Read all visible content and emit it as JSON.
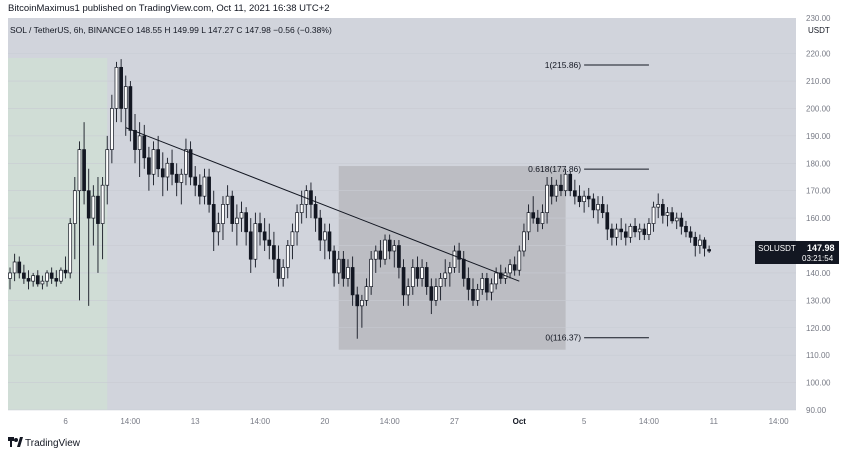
{
  "header": {
    "publish_line": "BitcoinMaximus1 published on TradingView.com, Oct 11, 2021 16:38 UTC+2"
  },
  "symbol_bar": {
    "symbol": "SOL / TetherUS, 6h, BINANCE",
    "ohlc_text": "O 148.55  H 149.99  L 147.27  C 147.98  −0.56 (−0.38%)"
  },
  "price_axis": {
    "currency_label": "USDT",
    "top_partial_label": "230.00"
  },
  "last_price": {
    "ticker": "SOLUSDT",
    "price": "147.98",
    "countdown": "03:21:54",
    "color": "#131722"
  },
  "footer": {
    "brand": "TradingView"
  },
  "colors": {
    "plot_bg": "#d1d4dc",
    "left_shade": "#d0ddd6",
    "range_box": "#b8b9be",
    "candle": "#131722"
  },
  "chart_data": {
    "type": "candlestick",
    "title": "SOL / TetherUS, 6h, BINANCE",
    "ylabel": "USDT",
    "ylim": [
      90,
      233
    ],
    "yticks": [
      90,
      100,
      110,
      120,
      130,
      140,
      150,
      160,
      170,
      180,
      190,
      200,
      210,
      220
    ],
    "xlim": [
      0,
      156
    ],
    "xticks": [
      {
        "x": 12,
        "label": "6"
      },
      {
        "x": 26,
        "label": "14:00"
      },
      {
        "x": 40,
        "label": "13"
      },
      {
        "x": 54,
        "label": "14:00"
      },
      {
        "x": 68,
        "label": "20"
      },
      {
        "x": 82,
        "label": "14:00"
      },
      {
        "x": 96,
        "label": "27"
      },
      {
        "x": 110,
        "label": "Oct"
      },
      {
        "x": 124,
        "label": "5"
      },
      {
        "x": 138,
        "label": "14:00"
      },
      {
        "x": 152,
        "label": "11"
      },
      {
        "x": 166,
        "label": "14:00"
      }
    ],
    "grid": true,
    "candles": [
      {
        "x": 0,
        "o": 138,
        "h": 142,
        "l": 134,
        "c": 140
      },
      {
        "x": 1,
        "o": 140,
        "h": 147,
        "l": 137,
        "c": 144
      },
      {
        "x": 2,
        "o": 144,
        "h": 146,
        "l": 138,
        "c": 140
      },
      {
        "x": 3,
        "o": 140,
        "h": 143,
        "l": 136,
        "c": 138
      },
      {
        "x": 4,
        "o": 138,
        "h": 141,
        "l": 134,
        "c": 137
      },
      {
        "x": 5,
        "o": 137,
        "h": 140,
        "l": 135,
        "c": 139
      },
      {
        "x": 6,
        "o": 139,
        "h": 141,
        "l": 135,
        "c": 136
      },
      {
        "x": 7,
        "o": 136,
        "h": 139,
        "l": 134,
        "c": 137
      },
      {
        "x": 8,
        "o": 137,
        "h": 141,
        "l": 135,
        "c": 140
      },
      {
        "x": 9,
        "o": 140,
        "h": 142,
        "l": 136,
        "c": 138
      },
      {
        "x": 10,
        "o": 138,
        "h": 141,
        "l": 135,
        "c": 137
      },
      {
        "x": 11,
        "o": 137,
        "h": 142,
        "l": 136,
        "c": 141
      },
      {
        "x": 12,
        "o": 141,
        "h": 146,
        "l": 138,
        "c": 140
      },
      {
        "x": 13,
        "o": 140,
        "h": 160,
        "l": 138,
        "c": 158
      },
      {
        "x": 14,
        "o": 158,
        "h": 175,
        "l": 145,
        "c": 170
      },
      {
        "x": 15,
        "o": 170,
        "h": 188,
        "l": 130,
        "c": 185
      },
      {
        "x": 16,
        "o": 185,
        "h": 195,
        "l": 165,
        "c": 170
      },
      {
        "x": 17,
        "o": 170,
        "h": 178,
        "l": 128,
        "c": 160
      },
      {
        "x": 18,
        "o": 160,
        "h": 172,
        "l": 150,
        "c": 168
      },
      {
        "x": 19,
        "o": 168,
        "h": 175,
        "l": 140,
        "c": 158
      },
      {
        "x": 20,
        "o": 158,
        "h": 175,
        "l": 145,
        "c": 172
      },
      {
        "x": 21,
        "o": 172,
        "h": 190,
        "l": 165,
        "c": 185
      },
      {
        "x": 22,
        "o": 185,
        "h": 205,
        "l": 180,
        "c": 200
      },
      {
        "x": 23,
        "o": 200,
        "h": 217,
        "l": 195,
        "c": 215
      },
      {
        "x": 24,
        "o": 215,
        "h": 218,
        "l": 195,
        "c": 200
      },
      {
        "x": 25,
        "o": 200,
        "h": 212,
        "l": 190,
        "c": 208
      },
      {
        "x": 26,
        "o": 208,
        "h": 210,
        "l": 188,
        "c": 192
      },
      {
        "x": 27,
        "o": 192,
        "h": 198,
        "l": 180,
        "c": 185
      },
      {
        "x": 28,
        "o": 185,
        "h": 195,
        "l": 175,
        "c": 190
      },
      {
        "x": 29,
        "o": 190,
        "h": 194,
        "l": 178,
        "c": 182
      },
      {
        "x": 30,
        "o": 182,
        "h": 186,
        "l": 170,
        "c": 176
      },
      {
        "x": 31,
        "o": 176,
        "h": 188,
        "l": 172,
        "c": 185
      },
      {
        "x": 32,
        "o": 185,
        "h": 190,
        "l": 175,
        "c": 178
      },
      {
        "x": 33,
        "o": 178,
        "h": 184,
        "l": 168,
        "c": 175
      },
      {
        "x": 34,
        "o": 175,
        "h": 182,
        "l": 170,
        "c": 180
      },
      {
        "x": 35,
        "o": 180,
        "h": 185,
        "l": 172,
        "c": 176
      },
      {
        "x": 36,
        "o": 176,
        "h": 180,
        "l": 168,
        "c": 173
      },
      {
        "x": 37,
        "o": 173,
        "h": 178,
        "l": 165,
        "c": 176
      },
      {
        "x": 38,
        "o": 176,
        "h": 189,
        "l": 172,
        "c": 185
      },
      {
        "x": 39,
        "o": 185,
        "h": 188,
        "l": 172,
        "c": 175
      },
      {
        "x": 40,
        "o": 175,
        "h": 179,
        "l": 168,
        "c": 172
      },
      {
        "x": 41,
        "o": 172,
        "h": 176,
        "l": 165,
        "c": 168
      },
      {
        "x": 42,
        "o": 168,
        "h": 178,
        "l": 165,
        "c": 175
      },
      {
        "x": 43,
        "o": 175,
        "h": 178,
        "l": 162,
        "c": 165
      },
      {
        "x": 44,
        "o": 165,
        "h": 170,
        "l": 148,
        "c": 155
      },
      {
        "x": 45,
        "o": 155,
        "h": 162,
        "l": 150,
        "c": 158
      },
      {
        "x": 46,
        "o": 158,
        "h": 168,
        "l": 152,
        "c": 165
      },
      {
        "x": 47,
        "o": 165,
        "h": 172,
        "l": 160,
        "c": 168
      },
      {
        "x": 48,
        "o": 168,
        "h": 170,
        "l": 155,
        "c": 158
      },
      {
        "x": 49,
        "o": 158,
        "h": 165,
        "l": 150,
        "c": 160
      },
      {
        "x": 50,
        "o": 160,
        "h": 166,
        "l": 155,
        "c": 162
      },
      {
        "x": 51,
        "o": 162,
        "h": 164,
        "l": 150,
        "c": 155
      },
      {
        "x": 52,
        "o": 155,
        "h": 160,
        "l": 140,
        "c": 145
      },
      {
        "x": 53,
        "o": 145,
        "h": 162,
        "l": 142,
        "c": 158
      },
      {
        "x": 54,
        "o": 158,
        "h": 162,
        "l": 150,
        "c": 155
      },
      {
        "x": 55,
        "o": 155,
        "h": 160,
        "l": 148,
        "c": 152
      },
      {
        "x": 56,
        "o": 152,
        "h": 158,
        "l": 145,
        "c": 150
      },
      {
        "x": 57,
        "o": 150,
        "h": 155,
        "l": 140,
        "c": 145
      },
      {
        "x": 58,
        "o": 145,
        "h": 150,
        "l": 135,
        "c": 138
      },
      {
        "x": 59,
        "o": 138,
        "h": 145,
        "l": 135,
        "c": 142
      },
      {
        "x": 60,
        "o": 142,
        "h": 152,
        "l": 138,
        "c": 150
      },
      {
        "x": 61,
        "o": 150,
        "h": 158,
        "l": 145,
        "c": 155
      },
      {
        "x": 62,
        "o": 155,
        "h": 165,
        "l": 150,
        "c": 162
      },
      {
        "x": 63,
        "o": 162,
        "h": 170,
        "l": 158,
        "c": 165
      },
      {
        "x": 64,
        "o": 165,
        "h": 172,
        "l": 160,
        "c": 170
      },
      {
        "x": 65,
        "o": 170,
        "h": 173,
        "l": 160,
        "c": 165
      },
      {
        "x": 66,
        "o": 165,
        "h": 168,
        "l": 155,
        "c": 160
      },
      {
        "x": 67,
        "o": 160,
        "h": 163,
        "l": 148,
        "c": 152
      },
      {
        "x": 68,
        "o": 152,
        "h": 158,
        "l": 145,
        "c": 155
      },
      {
        "x": 69,
        "o": 155,
        "h": 158,
        "l": 145,
        "c": 148
      },
      {
        "x": 70,
        "o": 148,
        "h": 150,
        "l": 135,
        "c": 140
      },
      {
        "x": 71,
        "o": 140,
        "h": 148,
        "l": 136,
        "c": 145
      },
      {
        "x": 72,
        "o": 145,
        "h": 148,
        "l": 135,
        "c": 138
      },
      {
        "x": 73,
        "o": 138,
        "h": 145,
        "l": 135,
        "c": 142
      },
      {
        "x": 74,
        "o": 142,
        "h": 146,
        "l": 128,
        "c": 132
      },
      {
        "x": 75,
        "o": 132,
        "h": 135,
        "l": 116,
        "c": 128
      },
      {
        "x": 76,
        "o": 128,
        "h": 132,
        "l": 120,
        "c": 130
      },
      {
        "x": 77,
        "o": 130,
        "h": 138,
        "l": 128,
        "c": 135
      },
      {
        "x": 78,
        "o": 135,
        "h": 148,
        "l": 132,
        "c": 145
      },
      {
        "x": 79,
        "o": 145,
        "h": 150,
        "l": 140,
        "c": 148
      },
      {
        "x": 80,
        "o": 148,
        "h": 152,
        "l": 142,
        "c": 145
      },
      {
        "x": 81,
        "o": 145,
        "h": 154,
        "l": 143,
        "c": 152
      },
      {
        "x": 82,
        "o": 152,
        "h": 154,
        "l": 145,
        "c": 148
      },
      {
        "x": 83,
        "o": 148,
        "h": 152,
        "l": 142,
        "c": 150
      },
      {
        "x": 84,
        "o": 150,
        "h": 152,
        "l": 138,
        "c": 142
      },
      {
        "x": 85,
        "o": 142,
        "h": 145,
        "l": 128,
        "c": 132
      },
      {
        "x": 86,
        "o": 132,
        "h": 138,
        "l": 128,
        "c": 135
      },
      {
        "x": 87,
        "o": 135,
        "h": 145,
        "l": 132,
        "c": 142
      },
      {
        "x": 88,
        "o": 142,
        "h": 146,
        "l": 135,
        "c": 138
      },
      {
        "x": 89,
        "o": 138,
        "h": 145,
        "l": 135,
        "c": 142
      },
      {
        "x": 90,
        "o": 142,
        "h": 144,
        "l": 132,
        "c": 135
      },
      {
        "x": 91,
        "o": 135,
        "h": 138,
        "l": 125,
        "c": 130
      },
      {
        "x": 92,
        "o": 130,
        "h": 138,
        "l": 128,
        "c": 135
      },
      {
        "x": 93,
        "o": 135,
        "h": 140,
        "l": 130,
        "c": 138
      },
      {
        "x": 94,
        "o": 138,
        "h": 145,
        "l": 135,
        "c": 140
      },
      {
        "x": 95,
        "o": 140,
        "h": 144,
        "l": 135,
        "c": 142
      },
      {
        "x": 96,
        "o": 142,
        "h": 150,
        "l": 140,
        "c": 148
      },
      {
        "x": 97,
        "o": 148,
        "h": 151,
        "l": 140,
        "c": 145
      },
      {
        "x": 98,
        "o": 145,
        "h": 148,
        "l": 135,
        "c": 138
      },
      {
        "x": 99,
        "o": 138,
        "h": 142,
        "l": 130,
        "c": 134
      },
      {
        "x": 100,
        "o": 134,
        "h": 138,
        "l": 128,
        "c": 130
      },
      {
        "x": 101,
        "o": 130,
        "h": 136,
        "l": 128,
        "c": 134
      },
      {
        "x": 102,
        "o": 134,
        "h": 140,
        "l": 132,
        "c": 138
      },
      {
        "x": 103,
        "o": 138,
        "h": 140,
        "l": 130,
        "c": 133
      },
      {
        "x": 104,
        "o": 133,
        "h": 138,
        "l": 130,
        "c": 136
      },
      {
        "x": 105,
        "o": 136,
        "h": 142,
        "l": 134,
        "c": 140
      },
      {
        "x": 106,
        "o": 140,
        "h": 143,
        "l": 136,
        "c": 138
      },
      {
        "x": 107,
        "o": 138,
        "h": 142,
        "l": 136,
        "c": 140
      },
      {
        "x": 108,
        "o": 140,
        "h": 145,
        "l": 138,
        "c": 143
      },
      {
        "x": 109,
        "o": 143,
        "h": 146,
        "l": 139,
        "c": 141
      },
      {
        "x": 110,
        "o": 141,
        "h": 150,
        "l": 139,
        "c": 148
      },
      {
        "x": 111,
        "o": 148,
        "h": 158,
        "l": 146,
        "c": 155
      },
      {
        "x": 112,
        "o": 155,
        "h": 165,
        "l": 152,
        "c": 162
      },
      {
        "x": 113,
        "o": 162,
        "h": 168,
        "l": 158,
        "c": 160
      },
      {
        "x": 114,
        "o": 160,
        "h": 163,
        "l": 155,
        "c": 158
      },
      {
        "x": 115,
        "o": 158,
        "h": 165,
        "l": 156,
        "c": 162
      },
      {
        "x": 116,
        "o": 162,
        "h": 175,
        "l": 158,
        "c": 172
      },
      {
        "x": 117,
        "o": 172,
        "h": 175,
        "l": 165,
        "c": 168
      },
      {
        "x": 118,
        "o": 168,
        "h": 174,
        "l": 166,
        "c": 172
      },
      {
        "x": 119,
        "o": 172,
        "h": 176,
        "l": 168,
        "c": 170
      },
      {
        "x": 120,
        "o": 170,
        "h": 178,
        "l": 168,
        "c": 176
      },
      {
        "x": 121,
        "o": 176,
        "h": 177,
        "l": 168,
        "c": 170
      },
      {
        "x": 122,
        "o": 170,
        "h": 174,
        "l": 165,
        "c": 168
      },
      {
        "x": 123,
        "o": 168,
        "h": 172,
        "l": 164,
        "c": 166
      },
      {
        "x": 124,
        "o": 166,
        "h": 170,
        "l": 162,
        "c": 168
      },
      {
        "x": 125,
        "o": 168,
        "h": 171,
        "l": 164,
        "c": 167
      },
      {
        "x": 126,
        "o": 167,
        "h": 169,
        "l": 160,
        "c": 163
      },
      {
        "x": 127,
        "o": 163,
        "h": 168,
        "l": 158,
        "c": 165
      },
      {
        "x": 128,
        "o": 165,
        "h": 168,
        "l": 160,
        "c": 162
      },
      {
        "x": 129,
        "o": 162,
        "h": 165,
        "l": 152,
        "c": 156
      },
      {
        "x": 130,
        "o": 156,
        "h": 158,
        "l": 150,
        "c": 153
      },
      {
        "x": 131,
        "o": 153,
        "h": 158,
        "l": 150,
        "c": 156
      },
      {
        "x": 132,
        "o": 156,
        "h": 160,
        "l": 152,
        "c": 155
      },
      {
        "x": 133,
        "o": 155,
        "h": 158,
        "l": 150,
        "c": 153
      },
      {
        "x": 134,
        "o": 153,
        "h": 158,
        "l": 151,
        "c": 157
      },
      {
        "x": 135,
        "o": 157,
        "h": 160,
        "l": 153,
        "c": 155
      },
      {
        "x": 136,
        "o": 155,
        "h": 158,
        "l": 152,
        "c": 156
      },
      {
        "x": 137,
        "o": 156,
        "h": 158,
        "l": 152,
        "c": 154
      },
      {
        "x": 138,
        "o": 154,
        "h": 160,
        "l": 152,
        "c": 158
      },
      {
        "x": 139,
        "o": 158,
        "h": 166,
        "l": 155,
        "c": 164
      },
      {
        "x": 140,
        "o": 164,
        "h": 169,
        "l": 160,
        "c": 165
      },
      {
        "x": 141,
        "o": 165,
        "h": 167,
        "l": 158,
        "c": 161
      },
      {
        "x": 142,
        "o": 161,
        "h": 164,
        "l": 157,
        "c": 162
      },
      {
        "x": 143,
        "o": 162,
        "h": 164,
        "l": 158,
        "c": 159
      },
      {
        "x": 144,
        "o": 159,
        "h": 162,
        "l": 156,
        "c": 160
      },
      {
        "x": 145,
        "o": 160,
        "h": 162,
        "l": 154,
        "c": 157
      },
      {
        "x": 146,
        "o": 157,
        "h": 159,
        "l": 153,
        "c": 155
      },
      {
        "x": 147,
        "o": 155,
        "h": 157,
        "l": 151,
        "c": 153
      },
      {
        "x": 148,
        "o": 153,
        "h": 155,
        "l": 146,
        "c": 150
      },
      {
        "x": 149,
        "o": 150,
        "h": 154,
        "l": 147,
        "c": 152
      },
      {
        "x": 150,
        "o": 152,
        "h": 153,
        "l": 146,
        "c": 149
      },
      {
        "x": 151,
        "o": 148.55,
        "h": 149.99,
        "l": 147.27,
        "c": 147.98
      }
    ],
    "trendline": {
      "x1": 25,
      "y1": 193,
      "x2": 110,
      "y2": 137
    },
    "shaded_regions": [
      {
        "x1": 0,
        "x2": 21,
        "role": "left-shade"
      },
      {
        "x1": 71,
        "x2": 120,
        "y1": 112,
        "y2": 179,
        "role": "range-box"
      }
    ],
    "fib_levels": [
      {
        "label": "1(215.86)",
        "value": 215.86
      },
      {
        "label": "0.618(177.86)",
        "value": 177.86
      },
      {
        "label": "0(116.37)",
        "value": 116.37
      }
    ],
    "fib_x": [
      124,
      138
    ]
  }
}
